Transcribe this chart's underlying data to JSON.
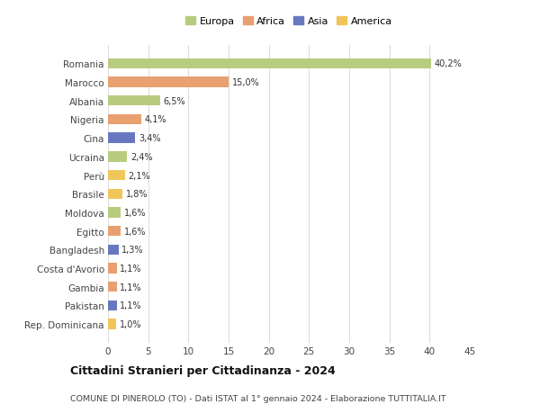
{
  "categories": [
    "Rep. Dominicana",
    "Pakistan",
    "Gambia",
    "Costa d'Avorio",
    "Bangladesh",
    "Egitto",
    "Moldova",
    "Brasile",
    "Perù",
    "Ucraina",
    "Cina",
    "Nigeria",
    "Albania",
    "Marocco",
    "Romania"
  ],
  "values": [
    1.0,
    1.1,
    1.1,
    1.1,
    1.3,
    1.6,
    1.6,
    1.8,
    2.1,
    2.4,
    3.4,
    4.1,
    6.5,
    15.0,
    40.2
  ],
  "labels": [
    "1,0%",
    "1,1%",
    "1,1%",
    "1,1%",
    "1,3%",
    "1,6%",
    "1,6%",
    "1,8%",
    "2,1%",
    "2,4%",
    "3,4%",
    "4,1%",
    "6,5%",
    "15,0%",
    "40,2%"
  ],
  "colors": [
    "#f0c55a",
    "#6878c0",
    "#e8a070",
    "#e8a070",
    "#6878c0",
    "#e8a070",
    "#b8cc80",
    "#f0c55a",
    "#f0c55a",
    "#b8cc80",
    "#6878c0",
    "#e8a070",
    "#b8cc80",
    "#e8a070",
    "#b8cc80"
  ],
  "legend_labels": [
    "Europa",
    "Africa",
    "Asia",
    "America"
  ],
  "legend_colors": [
    "#b8cc80",
    "#e8a070",
    "#6878c0",
    "#f0c55a"
  ],
  "xlim": [
    0,
    45
  ],
  "xticks": [
    0,
    5,
    10,
    15,
    20,
    25,
    30,
    35,
    40,
    45
  ],
  "title": "Cittadini Stranieri per Cittadinanza - 2024",
  "subtitle": "COMUNE DI PINEROLO (TO) - Dati ISTAT al 1° gennaio 2024 - Elaborazione TUTTITALIA.IT",
  "background_color": "#ffffff",
  "grid_color": "#dddddd",
  "bar_height": 0.55
}
